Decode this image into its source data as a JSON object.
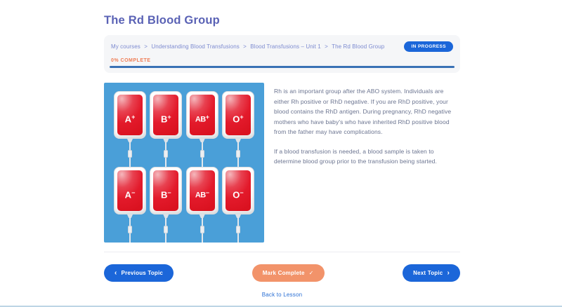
{
  "page": {
    "title": "The Rd Blood Group"
  },
  "breadcrumb": {
    "separator": ">",
    "items": [
      "My courses",
      "Understanding Blood Transfusions",
      "Blood Transfusions – Unit 1",
      "The Rd Blood Group"
    ]
  },
  "status": {
    "badge_label": "IN PROGRESS",
    "progress_label": "0% COMPLETE",
    "progress_percent": 0
  },
  "lesson": {
    "bags": [
      {
        "group": "A",
        "sign": "+"
      },
      {
        "group": "B",
        "sign": "+"
      },
      {
        "group": "AB",
        "sign": "+"
      },
      {
        "group": "O",
        "sign": "+"
      },
      {
        "group": "A",
        "sign": "−"
      },
      {
        "group": "B",
        "sign": "−"
      },
      {
        "group": "AB",
        "sign": "−"
      },
      {
        "group": "O",
        "sign": "−"
      }
    ],
    "paragraphs": [
      "Rh is an important group after the ABO system. Individuals are either Rh positive or RhD negative. If you are RhD positive, your blood contains the RhD antigen. During pregnancy, RhD negative mothers who have baby's who have inherited RhD positive blood from the father may have complications.",
      "If a blood transfusion is needed, a blood sample is taken to determine blood group prior to the transfusion being started."
    ]
  },
  "nav": {
    "previous_label": "Previous Topic",
    "previous_icon": "‹",
    "mark_complete_label": "Mark Complete",
    "check_icon": "✓",
    "next_label": "Next Topic",
    "next_icon": "›",
    "back_link_label": "Back to Lesson"
  },
  "colors": {
    "title": "#5a62b5",
    "breadcrumb_text": "#7d8bd0",
    "badge_bg": "#1b66d9",
    "progress_text": "#ef7d55",
    "progress_bar": "#3a72b5",
    "button_blue": "#1b66d9",
    "mark_complete_bg": "#f2936a",
    "image_bg": "#4a9fd8",
    "bag_red": "#e31a2b"
  }
}
